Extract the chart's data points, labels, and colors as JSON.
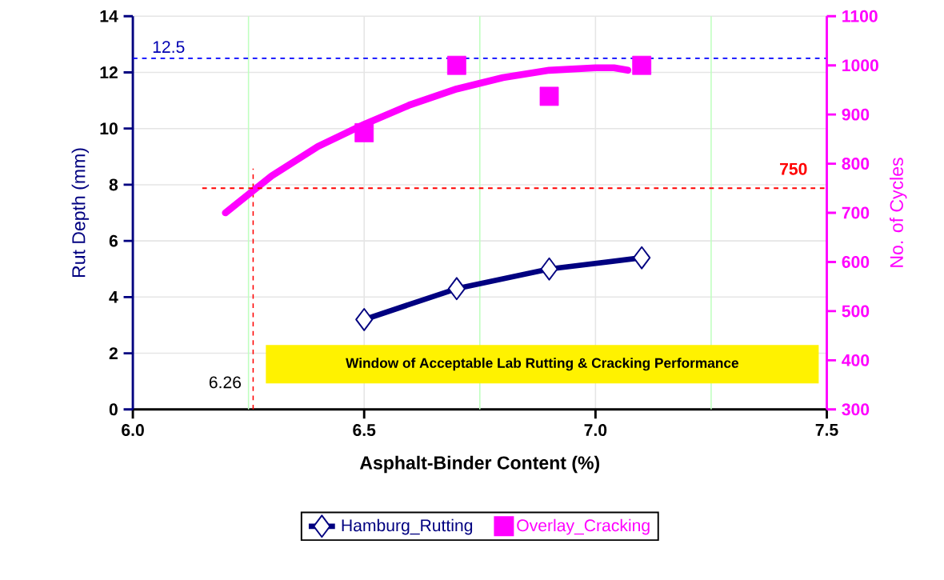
{
  "chart_data": {
    "type": "line",
    "xlabel": "Asphalt-Binder Content (%)",
    "ylabel": "Rut Depth (mm)",
    "y2label": "No. of Cycles",
    "xlim": [
      6.0,
      7.5
    ],
    "xticks": [
      {
        "value": 6.0,
        "label": "6.0"
      },
      {
        "value": 6.25,
        "label": null
      },
      {
        "value": 6.5,
        "label": "6.5"
      },
      {
        "value": 6.75,
        "label": null
      },
      {
        "value": 7.0,
        "label": "7.0"
      },
      {
        "value": 7.25,
        "label": null
      },
      {
        "value": 7.5,
        "label": "7.5"
      }
    ],
    "ylim": [
      0,
      14
    ],
    "yticks": [
      0,
      2,
      4,
      6,
      8,
      10,
      12,
      14
    ],
    "y2lim": [
      300,
      1100
    ],
    "y2ticks": [
      300,
      400,
      500,
      600,
      700,
      800,
      900,
      1000,
      1100
    ],
    "grid": true,
    "legend": "bottom",
    "series": [
      {
        "name": "Hamburg_Rutting",
        "type": "line",
        "color": "#000080",
        "marker": "diamond",
        "x": [
          6.5,
          6.7,
          6.9,
          7.1
        ],
        "values": [
          3.2,
          4.3,
          5.0,
          5.4
        ]
      },
      {
        "name": "Overlay_Cracking",
        "type": "scatter",
        "color": "#ff00ff",
        "marker": "square",
        "axis": "y2",
        "x": [
          6.5,
          6.7,
          6.9,
          7.1
        ],
        "values": [
          863,
          1000,
          937,
          1000
        ]
      },
      {
        "type": "line",
        "color": "#ff00ff",
        "marker": "none",
        "axis": "y2",
        "x": [
          6.2,
          6.3,
          6.4,
          6.5,
          6.6,
          6.7,
          6.8,
          6.9,
          7.0,
          7.04,
          7.07
        ],
        "values": [
          700,
          775,
          835,
          880,
          920,
          952,
          975,
          990,
          995,
          995,
          990
        ]
      }
    ],
    "ref_lines": [
      {
        "axis": "y",
        "value": 12.5,
        "label": "12.5",
        "color": "#0000ff",
        "line_style": "dashed"
      },
      {
        "axis": "y2",
        "value": 750,
        "label": "750",
        "color": "#ff0000",
        "line_style": "dashed"
      },
      {
        "axis": "x",
        "value": 6.26,
        "label": "6.26",
        "color": "#ff0000",
        "line_style": "dashed"
      }
    ],
    "annotations": [
      "Window of Acceptable Lab Rutting & Cracking Performance"
    ]
  }
}
